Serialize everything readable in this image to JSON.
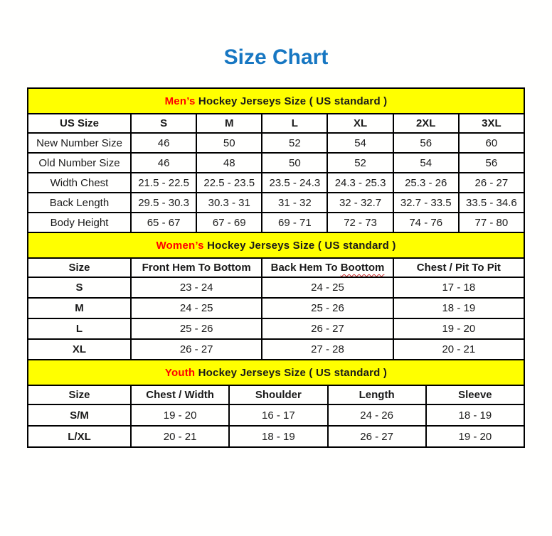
{
  "page": {
    "title": "Size Chart"
  },
  "colors": {
    "title_blue": "#1777c2",
    "banner_yellow": "#ffff00",
    "highlight_red": "#ff0000",
    "border_black": "#000000"
  },
  "chart_data": [
    {
      "type": "table",
      "title": "Men’s Hockey Jerseys Size ( US standard )",
      "title_highlight": "Men’s",
      "columns": [
        "US Size",
        "S",
        "M",
        "L",
        "XL",
        "2XL",
        "3XL"
      ],
      "rows": [
        [
          "New Number Size",
          "46",
          "50",
          "52",
          "54",
          "56",
          "60"
        ],
        [
          "Old Number Size",
          "46",
          "48",
          "50",
          "52",
          "54",
          "56"
        ],
        [
          "Width Chest",
          "21.5 - 22.5",
          "22.5 - 23.5",
          "23.5 - 24.3",
          "24.3 - 25.3",
          "25.3 - 26",
          "26 - 27"
        ],
        [
          "Back Length",
          "29.5 - 30.3",
          "30.3 - 31",
          "31 - 32",
          "32 - 32.7",
          "32.7 - 33.5",
          "33.5 - 34.6"
        ],
        [
          "Body Height",
          "65 - 67",
          "67 - 69",
          "69 - 71",
          "72 - 73",
          "74 - 76",
          "77 - 80"
        ]
      ]
    },
    {
      "type": "table",
      "title": "Women’s Hockey Jerseys Size ( US standard )",
      "title_highlight": "Women’s",
      "columns": [
        "Size",
        "Front Hem To Bottom",
        "Back Hem To Boottom",
        "Chest / Pit To Pit"
      ],
      "misspelled_word": "Boottom",
      "rows": [
        [
          "S",
          "23 - 24",
          "24 - 25",
          "17 - 18"
        ],
        [
          "M",
          "24 - 25",
          "25 - 26",
          "18 - 19"
        ],
        [
          "L",
          "25 - 26",
          "26 - 27",
          "19 - 20"
        ],
        [
          "XL",
          "26 - 27",
          "27 - 28",
          "20 - 21"
        ]
      ]
    },
    {
      "type": "table",
      "title": "Youth Hockey Jerseys Size ( US standard )",
      "title_highlight": "Youth",
      "columns": [
        "Size",
        "Chest / Width",
        "Shoulder",
        "Length",
        "Sleeve"
      ],
      "rows": [
        [
          "S/M",
          "19 - 20",
          "16 - 17",
          "24 - 26",
          "18 - 19"
        ],
        [
          "L/XL",
          "20 - 21",
          "18 - 19",
          "26 - 27",
          "19 - 20"
        ]
      ]
    }
  ]
}
